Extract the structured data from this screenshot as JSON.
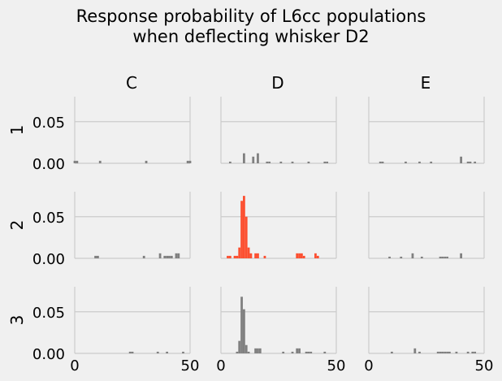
{
  "chart_data": {
    "type": "bar",
    "title": "Response probability of L6cc populations",
    "subtitle": "when deflecting whisker D2",
    "column_labels": [
      "C",
      "D",
      "E"
    ],
    "row_labels": [
      "1",
      "2",
      "3"
    ],
    "xlim": [
      0,
      50
    ],
    "ylim": [
      0,
      0.08
    ],
    "x_ticks": [
      "0",
      "50"
    ],
    "y_ticks": [
      "0.00",
      "0.05"
    ],
    "grid": true,
    "colors": {
      "default": "#808080",
      "highlight": "#fc4f30",
      "grid": "#cbcbcb",
      "background": "#f0f0f0"
    },
    "highlight_panel": "2-D",
    "panels": [
      {
        "row": "1",
        "col": "C",
        "bars": [
          [
            0,
            0.003
          ],
          [
            1,
            0.003
          ],
          [
            11,
            0.003
          ],
          [
            31,
            0.003
          ],
          [
            49,
            0.003
          ],
          [
            50,
            0.003
          ]
        ]
      },
      {
        "row": "1",
        "col": "D",
        "bars": [
          [
            4,
            0.002
          ],
          [
            10,
            0.012
          ],
          [
            14,
            0.008
          ],
          [
            16,
            0.012
          ],
          [
            20,
            0.002
          ],
          [
            21,
            0.002
          ],
          [
            26,
            0.002
          ],
          [
            31,
            0.002
          ],
          [
            38,
            0.002
          ],
          [
            45,
            0.002
          ],
          [
            46,
            0.002
          ]
        ]
      },
      {
        "row": "1",
        "col": "E",
        "bars": [
          [
            5,
            0.002
          ],
          [
            6,
            0.002
          ],
          [
            16,
            0.002
          ],
          [
            22,
            0.002
          ],
          [
            27,
            0.002
          ],
          [
            40,
            0.008
          ],
          [
            43,
            0.002
          ],
          [
            44,
            0.002
          ],
          [
            46,
            0.002
          ]
        ]
      },
      {
        "row": "2",
        "col": "C",
        "bars": [
          [
            9,
            0.003
          ],
          [
            10,
            0.003
          ],
          [
            30,
            0.003
          ],
          [
            37,
            0.006
          ],
          [
            39,
            0.003
          ],
          [
            40,
            0.003
          ],
          [
            41,
            0.003
          ],
          [
            42,
            0.003
          ],
          [
            44,
            0.006
          ],
          [
            45,
            0.006
          ]
        ]
      },
      {
        "row": "2",
        "col": "D",
        "bars": [
          [
            3,
            0.003
          ],
          [
            4,
            0.003
          ],
          [
            6,
            0.003
          ],
          [
            7,
            0.003
          ],
          [
            8,
            0.013
          ],
          [
            9,
            0.069
          ],
          [
            10,
            0.075
          ],
          [
            11,
            0.05
          ],
          [
            12,
            0.013
          ],
          [
            13,
            0.006
          ],
          [
            15,
            0.006
          ],
          [
            16,
            0.006
          ],
          [
            19,
            0.003
          ],
          [
            33,
            0.006
          ],
          [
            34,
            0.006
          ],
          [
            35,
            0.006
          ],
          [
            36,
            0.003
          ],
          [
            41,
            0.006
          ],
          [
            42,
            0.003
          ]
        ]
      },
      {
        "row": "2",
        "col": "E",
        "bars": [
          [
            9,
            0.002
          ],
          [
            14,
            0.002
          ],
          [
            19,
            0.006
          ],
          [
            23,
            0.002
          ],
          [
            31,
            0.002
          ],
          [
            32,
            0.002
          ],
          [
            33,
            0.002
          ],
          [
            34,
            0.002
          ],
          [
            40,
            0.006
          ]
        ]
      },
      {
        "row": "3",
        "col": "C",
        "bars": [
          [
            24,
            0.002
          ],
          [
            25,
            0.002
          ],
          [
            36,
            0.002
          ],
          [
            40,
            0.002
          ],
          [
            47,
            0.002
          ]
        ]
      },
      {
        "row": "3",
        "col": "D",
        "bars": [
          [
            7,
            0.002
          ],
          [
            8,
            0.015
          ],
          [
            9,
            0.068
          ],
          [
            10,
            0.053
          ],
          [
            11,
            0.01
          ],
          [
            12,
            0.002
          ],
          [
            15,
            0.006
          ],
          [
            16,
            0.006
          ],
          [
            17,
            0.006
          ],
          [
            27,
            0.002
          ],
          [
            31,
            0.002
          ],
          [
            33,
            0.006
          ],
          [
            34,
            0.006
          ],
          [
            37,
            0.002
          ],
          [
            38,
            0.002
          ],
          [
            39,
            0.002
          ],
          [
            45,
            0.002
          ]
        ]
      },
      {
        "row": "3",
        "col": "E",
        "bars": [
          [
            10,
            0.002
          ],
          [
            20,
            0.006
          ],
          [
            22,
            0.002
          ],
          [
            30,
            0.002
          ],
          [
            31,
            0.002
          ],
          [
            32,
            0.002
          ],
          [
            33,
            0.002
          ],
          [
            34,
            0.002
          ],
          [
            35,
            0.002
          ],
          [
            38,
            0.002
          ],
          [
            43,
            0.002
          ],
          [
            45,
            0.002
          ],
          [
            46,
            0.002
          ]
        ]
      }
    ]
  }
}
